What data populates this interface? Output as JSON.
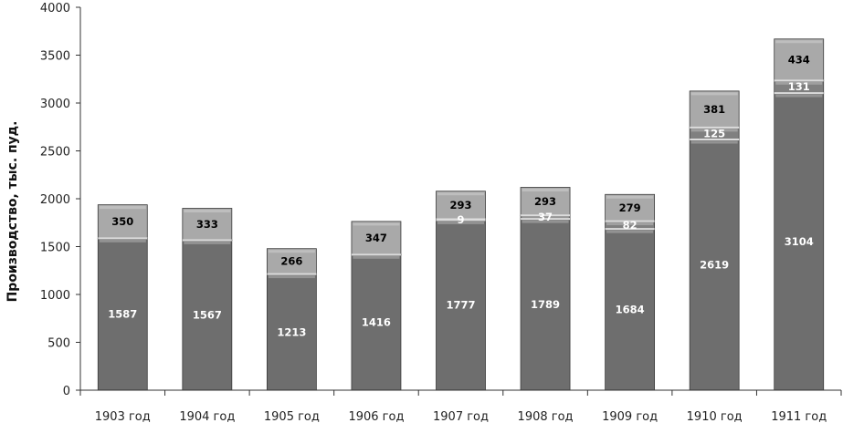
{
  "chart_data": {
    "type": "bar",
    "stacked": true,
    "ylabel": "Производство, тыс. пуд.",
    "xlabel": "",
    "ylim": [
      0,
      4000
    ],
    "yticks": [
      "0",
      "500",
      "1000",
      "1500",
      "2000",
      "2500",
      "3000",
      "3500",
      "4000"
    ],
    "categories": [
      "1903 год",
      "1904 год",
      "1905 год",
      "1906 год",
      "1907 год",
      "1908 год",
      "1909 год",
      "1910 год",
      "1911 год"
    ],
    "series": [
      {
        "color": "#6e6e6e",
        "label_color": "#ffffff",
        "values": [
          1587,
          1567,
          1213,
          1416,
          1777,
          1789,
          1684,
          2619,
          3104
        ],
        "labels": [
          "1587",
          "1567",
          "1213",
          "1416",
          "1777",
          "1789",
          "1684",
          "2619",
          "3104"
        ]
      },
      {
        "color": "#808080",
        "label_color": "#ffffff",
        "values": [
          null,
          null,
          null,
          null,
          9,
          37,
          82,
          125,
          131
        ],
        "labels": [
          "",
          "",
          "",
          "",
          "9",
          "37",
          "82",
          "125",
          "131"
        ]
      },
      {
        "color": "#a9a9a9",
        "label_color": "#000000",
        "values": [
          350,
          333,
          266,
          347,
          293,
          293,
          279,
          381,
          434
        ],
        "labels": [
          "350",
          "333",
          "266",
          "347",
          "293",
          "293",
          "279",
          "381",
          "434"
        ]
      }
    ],
    "grid": false,
    "legend": "none"
  }
}
